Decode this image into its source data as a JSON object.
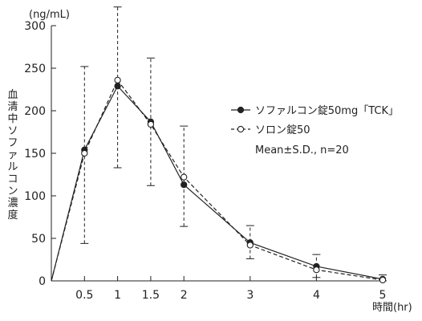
{
  "chart_data": {
    "type": "line",
    "y_unit": "(ng/mL)",
    "ylabel": "血清中ソファルコン濃度",
    "xlabel": "時間(hr)",
    "xlim": [
      0,
      5
    ],
    "ylim": [
      0,
      300
    ],
    "x_ticks": [
      0.5,
      1,
      1.5,
      2,
      3,
      4,
      5
    ],
    "x_tick_labels": [
      "0.5",
      "1",
      "1.5",
      "2",
      "3",
      "4",
      "5"
    ],
    "y_ticks": [
      0,
      50,
      100,
      150,
      200,
      250,
      300
    ],
    "y_tick_labels": [
      "0",
      "50",
      "100",
      "150",
      "200",
      "250",
      "300"
    ],
    "legend_note": "Mean±S.D.,  n=20",
    "legend_position": "right",
    "series": [
      {
        "name": "ソファルコン錠50mg「TCK」",
        "marker": "filled-circle",
        "line_style": "solid",
        "color": "#222222",
        "x": [
          0,
          0.5,
          1,
          1.5,
          2,
          3,
          4,
          5
        ],
        "y": [
          0,
          154,
          229,
          187,
          113,
          45,
          17,
          2
        ],
        "error_low": [
          null,
          44,
          133,
          112,
          64,
          26,
          4,
          0
        ],
        "error_high": [
          null,
          252,
          322,
          262,
          182,
          65,
          31,
          7
        ]
      },
      {
        "name": "ソロン錠50",
        "marker": "open-circle",
        "line_style": "dashed",
        "color": "#222222",
        "x": [
          0,
          0.5,
          1,
          1.5,
          2,
          3,
          4,
          5
        ],
        "y": [
          0,
          150,
          236,
          184,
          122,
          42,
          13,
          1
        ],
        "error_low": [
          null,
          null,
          null,
          null,
          null,
          null,
          null,
          null
        ],
        "error_high": [
          null,
          null,
          null,
          null,
          null,
          null,
          null,
          null
        ]
      }
    ]
  }
}
